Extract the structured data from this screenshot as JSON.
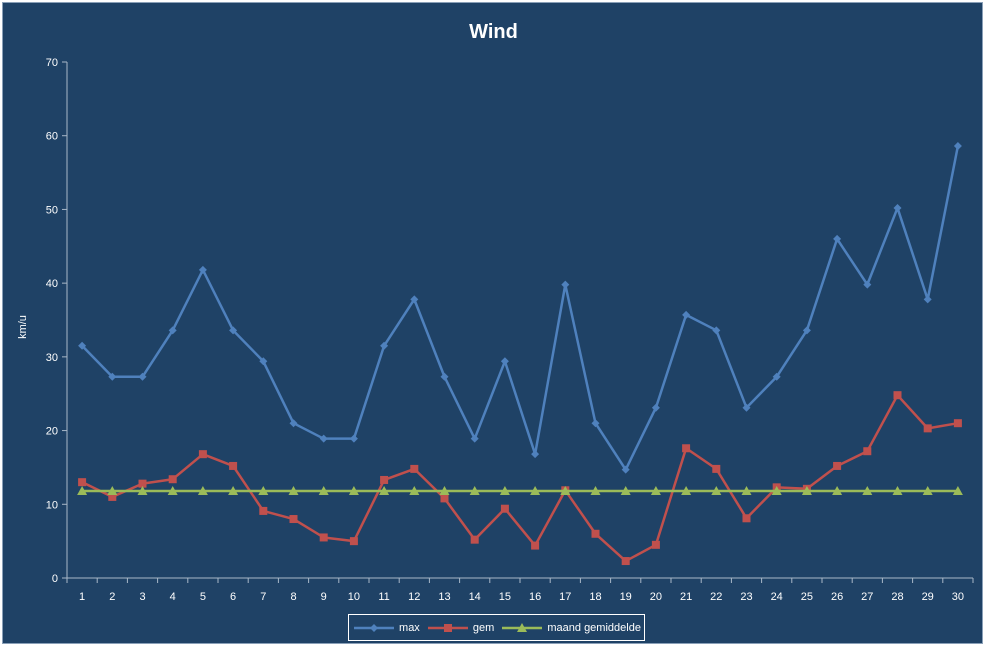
{
  "chart_data": {
    "type": "line",
    "title": "Wind",
    "ylabel": "km/u",
    "xlabel": "",
    "ylim": [
      0,
      70
    ],
    "yticks": [
      0,
      10,
      20,
      30,
      40,
      50,
      60,
      70
    ],
    "categories": [
      "1",
      "2",
      "3",
      "4",
      "5",
      "6",
      "7",
      "8",
      "9",
      "10",
      "11",
      "12",
      "13",
      "14",
      "15",
      "16",
      "17",
      "18",
      "19",
      "20",
      "21",
      "22",
      "23",
      "24",
      "25",
      "26",
      "27",
      "28",
      "29",
      "30"
    ],
    "grid": false,
    "legend_position": "bottom",
    "series": [
      {
        "name": "max",
        "color": "#4f81bd",
        "marker": "diamond",
        "values": [
          31.5,
          27.3,
          27.3,
          33.6,
          41.8,
          33.6,
          29.4,
          21,
          18.9,
          18.9,
          31.5,
          37.8,
          27.3,
          18.9,
          29.4,
          16.8,
          39.8,
          21,
          14.7,
          23.1,
          35.7,
          33.6,
          23.1,
          27.3,
          33.6,
          46,
          39.8,
          50.2,
          37.8,
          58.6
        ]
      },
      {
        "name": "gem",
        "color": "#c0504d",
        "marker": "square",
        "values": [
          13,
          11,
          12.8,
          13.4,
          16.8,
          15.2,
          9.1,
          8,
          5.5,
          5,
          13.3,
          14.8,
          10.8,
          5.2,
          9.4,
          4.4,
          11.9,
          6,
          2.3,
          4.5,
          17.6,
          14.8,
          8.1,
          12.3,
          12.1,
          15.2,
          17.2,
          24.8,
          20.3,
          21
        ]
      },
      {
        "name": "maand gemiddelde",
        "color": "#9bbb59",
        "marker": "triangle",
        "values": [
          11.8,
          11.8,
          11.8,
          11.8,
          11.8,
          11.8,
          11.8,
          11.8,
          11.8,
          11.8,
          11.8,
          11.8,
          11.8,
          11.8,
          11.8,
          11.8,
          11.8,
          11.8,
          11.8,
          11.8,
          11.8,
          11.8,
          11.8,
          11.8,
          11.8,
          11.8,
          11.8,
          11.8,
          11.8,
          11.8
        ]
      }
    ]
  }
}
